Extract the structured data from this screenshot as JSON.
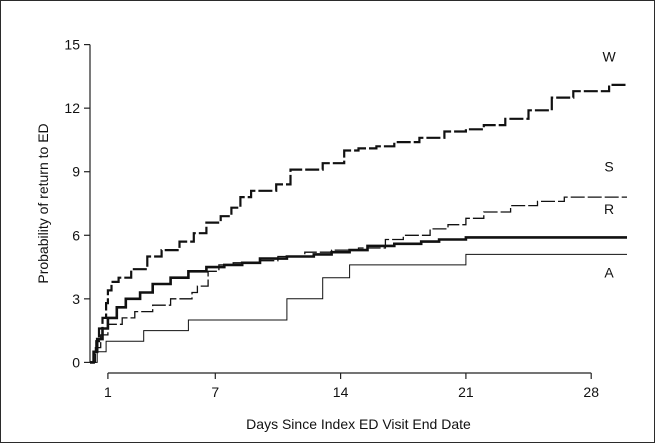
{
  "chart_data": {
    "type": "line",
    "title": "",
    "xlabel": "Days Since Index ED Visit End Date",
    "ylabel": "Probability of return to ED",
    "xlim": [
      0,
      30
    ],
    "ylim": [
      -0.5,
      15.5
    ],
    "xticks": [
      1,
      7,
      14,
      21,
      28
    ],
    "yticks": [
      0,
      3,
      6,
      9,
      12,
      15
    ],
    "grid": false,
    "legend": "none",
    "series": [
      {
        "name": "W",
        "style": "long-dash",
        "weight": 2.2,
        "points": [
          [
            0,
            0
          ],
          [
            0.2,
            0.4
          ],
          [
            0.35,
            1.0
          ],
          [
            0.5,
            1.6
          ],
          [
            0.7,
            2.1
          ],
          [
            0.9,
            2.8
          ],
          [
            1.0,
            3.4
          ],
          [
            1.2,
            3.8
          ],
          [
            1.6,
            4.0
          ],
          [
            2.3,
            4.4
          ],
          [
            3.2,
            5.0
          ],
          [
            4.0,
            5.3
          ],
          [
            5.0,
            5.7
          ],
          [
            5.8,
            6.1
          ],
          [
            6.5,
            6.6
          ],
          [
            7.3,
            6.9
          ],
          [
            7.9,
            7.3
          ],
          [
            8.4,
            7.8
          ],
          [
            9.0,
            8.1
          ],
          [
            10.4,
            8.4
          ],
          [
            11.2,
            9.1
          ],
          [
            13.0,
            9.4
          ],
          [
            14.2,
            10.0
          ],
          [
            15.0,
            10.1
          ],
          [
            16.0,
            10.2
          ],
          [
            17.0,
            10.4
          ],
          [
            18.4,
            10.6
          ],
          [
            19.8,
            10.9
          ],
          [
            21.0,
            11.0
          ],
          [
            22.0,
            11.2
          ],
          [
            23.2,
            11.5
          ],
          [
            24.5,
            11.9
          ],
          [
            25.8,
            12.5
          ],
          [
            27.0,
            12.8
          ],
          [
            29.0,
            13.1
          ],
          [
            30.0,
            13.1
          ]
        ]
      },
      {
        "name": "S",
        "style": "long-dash-thin",
        "weight": 1.3,
        "points": [
          [
            0,
            0
          ],
          [
            0.3,
            0.7
          ],
          [
            0.6,
            1.3
          ],
          [
            1.0,
            1.8
          ],
          [
            1.8,
            2.1
          ],
          [
            2.5,
            2.4
          ],
          [
            3.5,
            2.7
          ],
          [
            4.5,
            3.0
          ],
          [
            5.7,
            3.3
          ],
          [
            6.0,
            3.6
          ],
          [
            6.6,
            4.3
          ],
          [
            7.2,
            4.6
          ],
          [
            8.0,
            4.7
          ],
          [
            9.5,
            4.8
          ],
          [
            10.5,
            5.0
          ],
          [
            12.0,
            5.2
          ],
          [
            13.5,
            5.3
          ],
          [
            15.0,
            5.4
          ],
          [
            16.5,
            5.8
          ],
          [
            17.5,
            6.0
          ],
          [
            19.0,
            6.3
          ],
          [
            20.0,
            6.5
          ],
          [
            21.0,
            6.8
          ],
          [
            22.0,
            7.1
          ],
          [
            23.5,
            7.4
          ],
          [
            25.0,
            7.6
          ],
          [
            26.5,
            7.8
          ],
          [
            28.0,
            7.8
          ],
          [
            30.0,
            7.8
          ]
        ]
      },
      {
        "name": "R",
        "style": "solid-bold",
        "weight": 2.6,
        "points": [
          [
            0,
            0
          ],
          [
            0.2,
            0.5
          ],
          [
            0.4,
            1.1
          ],
          [
            0.7,
            1.6
          ],
          [
            1.0,
            2.1
          ],
          [
            1.5,
            2.6
          ],
          [
            2.0,
            3.0
          ],
          [
            2.8,
            3.3
          ],
          [
            3.5,
            3.7
          ],
          [
            4.5,
            4.0
          ],
          [
            5.5,
            4.3
          ],
          [
            6.5,
            4.5
          ],
          [
            7.5,
            4.6
          ],
          [
            8.5,
            4.7
          ],
          [
            9.5,
            4.9
          ],
          [
            11.0,
            5.0
          ],
          [
            12.5,
            5.1
          ],
          [
            13.5,
            5.2
          ],
          [
            14.5,
            5.3
          ],
          [
            15.5,
            5.5
          ],
          [
            17.0,
            5.6
          ],
          [
            18.5,
            5.7
          ],
          [
            19.5,
            5.8
          ],
          [
            21.0,
            5.9
          ],
          [
            30.0,
            5.9
          ]
        ]
      },
      {
        "name": "A",
        "style": "solid-thin",
        "weight": 1.0,
        "points": [
          [
            0,
            0
          ],
          [
            0.4,
            0.5
          ],
          [
            0.9,
            1.0
          ],
          [
            3.0,
            1.5
          ],
          [
            5.0,
            1.5
          ],
          [
            5.5,
            2.0
          ],
          [
            10.5,
            2.0
          ],
          [
            11.0,
            3.0
          ],
          [
            12.5,
            3.0
          ],
          [
            13.0,
            4.0
          ],
          [
            14.0,
            4.0
          ],
          [
            14.5,
            4.6
          ],
          [
            21.0,
            4.6
          ],
          [
            21.0,
            5.1
          ],
          [
            30.0,
            5.1
          ]
        ]
      }
    ],
    "annotations": [
      {
        "text": "W",
        "x": 29,
        "y": 14.2
      },
      {
        "text": "S",
        "x": 29,
        "y": 9.0
      },
      {
        "text": "R",
        "x": 29,
        "y": 7.0
      },
      {
        "text": "A",
        "x": 29,
        "y": 4.0
      }
    ]
  }
}
